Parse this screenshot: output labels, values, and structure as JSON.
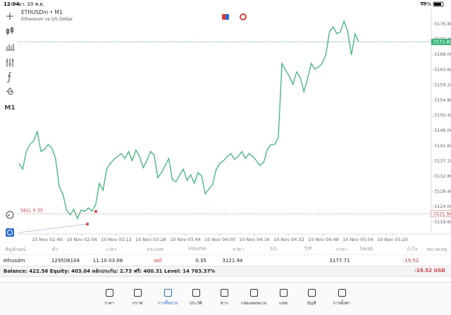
{
  "status_bar": {
    "time": "12:04",
    "date": "อา. 10 พ.ย.",
    "battery": "79%"
  },
  "toolbar": {
    "timeframe": "M1"
  },
  "chart_data": {
    "type": "line",
    "title": "ETHUSDm • M1",
    "subtitle": "Ethereum vs US Dollar",
    "color": "#3cb878",
    "values": [
      3136.47,
      3134.84,
      3139.93,
      3141.97,
      3142.99,
      3145.63,
      3139.93,
      3140.54,
      3141.97,
      3140.95,
      3137.89,
      3129.75,
      3127.71,
      3123.02,
      3121.6,
      3123.23,
      3120.58,
      3123.02,
      3122.62,
      3123.63,
      3122.62,
      3124.65,
      3130.76,
      3128.73,
      3134.84,
      3136.47,
      3137.69,
      3138.5,
      3139.32,
      3137.89,
      3139.93,
      3137.28,
      3140.34,
      3138.5,
      3135.25,
      3137.28,
      3139.93,
      3138.91,
      3132.39,
      3133.82,
      3135.86,
      3137.89,
      3131.78,
      3131.17,
      3133.21,
      3134.84,
      3131.58,
      3133.21,
      3130.76,
      3133.82,
      3132.8,
      3127.71,
      3129.13,
      3130.36,
      3134.84,
      3136.47,
      3137.28,
      3138.5,
      3139.32,
      3137.69,
      3138.5,
      3139.93,
      3137.89,
      3139.32,
      3138.5,
      3137.28,
      3135.86,
      3136.87,
      3140.54,
      3141.97,
      3141.97,
      3144.0,
      3165.39,
      3163.36,
      3161.73,
      3159.28,
      3162.95,
      3161.32,
      3157.24,
      3160.91,
      3165.39,
      3163.76,
      3164.37,
      3165.39,
      3167.84,
      3174.56,
      3175.99,
      3173.95,
      3174.56,
      3177.61,
      3174.56,
      3167.84,
      3173.95,
      3171.6
    ],
    "xticks": [
      "10 Nov 02:40",
      "10 Nov 02:56",
      "10 Nov 03:12",
      "10 Nov 03:28",
      "10 Nov 03:44",
      "10 Nov 04:00",
      "10 Nov 04:16",
      "10 Nov 04:32",
      "10 Nov 04:48",
      "10 Nov 05:04",
      "10 Nov 05:20"
    ],
    "ylim": [
      3116.5,
      3181.28
    ],
    "yticks": [
      {
        "value": 3176.8,
        "label": "3176.80"
      },
      {
        "value": 3172.4,
        "label": "3172.40"
      },
      {
        "value": 3168.0,
        "label": "3168.00"
      },
      {
        "value": 3163.6,
        "label": "3163.60"
      },
      {
        "value": 3159.2,
        "label": "3159.20"
      },
      {
        "value": 3154.8,
        "label": "3154.80"
      },
      {
        "value": 3150.4,
        "label": "3150.40"
      },
      {
        "value": 3146.0,
        "label": "3146.00"
      },
      {
        "value": 3141.6,
        "label": "3141.60"
      },
      {
        "value": 3137.2,
        "label": "3137.20"
      },
      {
        "value": 3132.8,
        "label": "3132.80"
      },
      {
        "value": 3128.4,
        "label": "3128.40"
      },
      {
        "value": 3124.0,
        "label": "3124.00"
      },
      {
        "value": 3119.6,
        "label": "3119.60"
      }
    ],
    "current_price": {
      "value": 3171.6,
      "label": "3171.60"
    },
    "order_line": {
      "label": "SELL 0.35",
      "price": {
        "value": 3121.94,
        "label": "3121.94"
      }
    }
  },
  "table": {
    "columns": [
      "สัญลักษณ์",
      "ตั๋ว",
      "เวลา",
      "ประเภท",
      "Volume",
      "ราคา",
      "S/L",
      "T/P",
      "ราคา",
      "Swap",
      "กำไร",
      "หมายเหตุ"
    ],
    "row": {
      "symbol": "ethusdm",
      "ticket": "129508104",
      "time": "11.10 03:08",
      "type": "sell",
      "volume": "0.35",
      "price": "3121.94",
      "current_price": "3177.71",
      "profit": "-19.52"
    }
  },
  "summary": {
    "text": "Balance: 422.56 Equity: 403.04 หลักประกัน: 2.73 ฟรี: 400.31 Level: 14 763.37%",
    "profit": "-19.52",
    "currency": "USD"
  },
  "nav": [
    "ราคา",
    "กราฟ",
    "การซื้อขาย",
    "ประวัติ",
    "ข่าว",
    "กล่องจดหมาย",
    "แชท",
    "บัญชี",
    "การตั้งค่า"
  ]
}
